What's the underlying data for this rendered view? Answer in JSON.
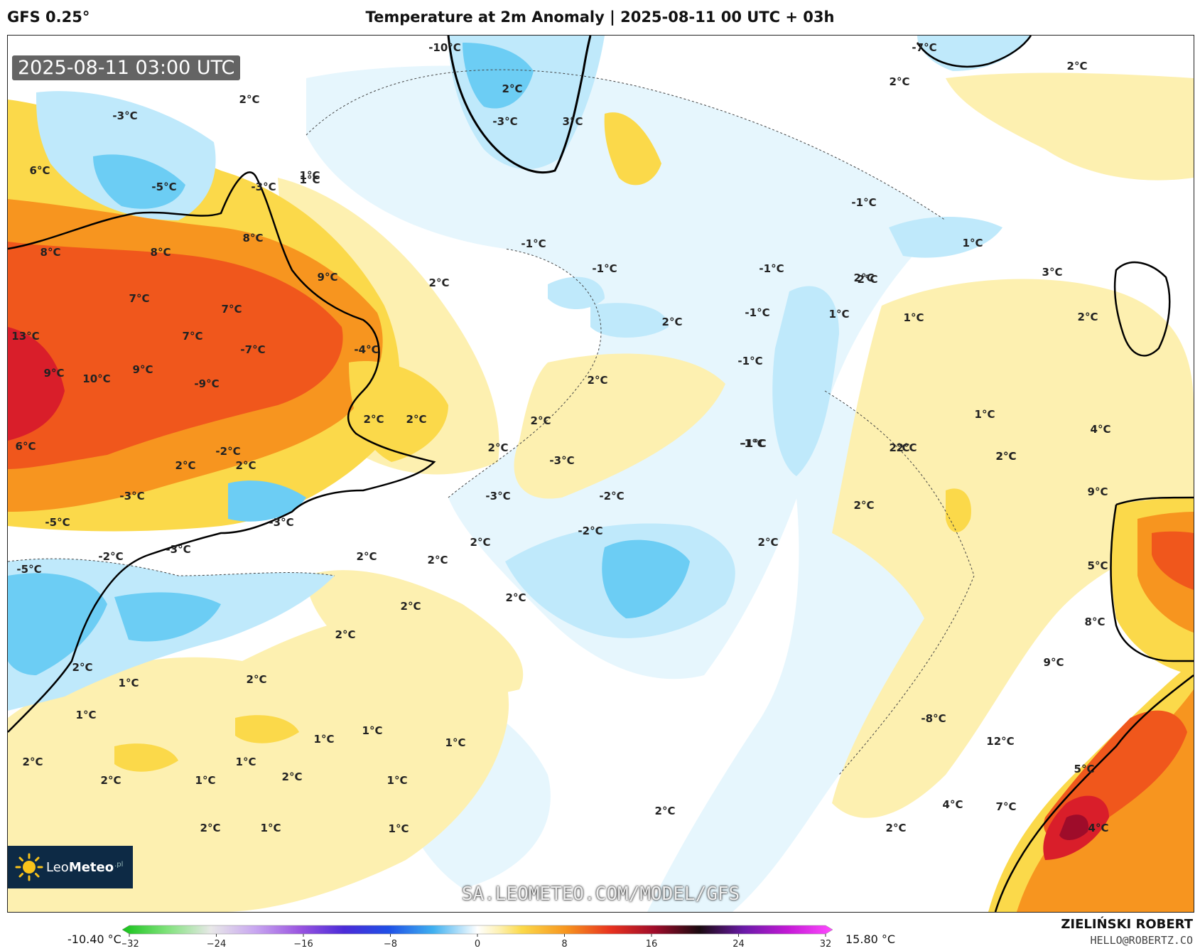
{
  "header": {
    "model": "GFS 0.25°",
    "title": "Temperature at 2m Anomaly | 2025-08-11 00 UTC + 03h"
  },
  "map": {
    "timestamp": "2025-08-11 03:00 UTC",
    "watermark": "SA.LEOMETEO.COM/MODEL/GFS",
    "labels": [
      "2°C",
      "-3°C",
      "-5°C",
      "-3°C",
      "6°C",
      "8°C",
      "8°C",
      "8°C",
      "7°C",
      "7°C",
      "9°C",
      "13°C",
      "7°C",
      "9°C",
      "10°C",
      "9°C",
      "-9°C",
      "-7°C",
      "-4°C",
      "6°C",
      "-2°C",
      "2°C",
      "2°C",
      "2°C",
      "2°C",
      "1°C",
      "-10°C",
      "2°C",
      "-3°C",
      "3°C",
      "-7°C",
      "2°C",
      "2°C",
      "-1°C",
      "-1°C",
      "-1°C",
      "-1°C",
      "2°C",
      "-1°C",
      "2°C",
      "2°C",
      "2°C",
      "2°C",
      "-1°C",
      "-3°C",
      "-3°C",
      "-2°C",
      "-2°C",
      "-1°C",
      "1°C",
      "2°C",
      "1°C",
      "1°C",
      "2°C",
      "1°C",
      "2°C",
      "2°C",
      "2°C",
      "2°C",
      "2°C",
      "2°C",
      "2°C",
      "1°C",
      "2°C",
      "1°C",
      "1°C",
      "1°C",
      "1°C",
      "1°C",
      "1°C",
      "2°C",
      "2°C",
      "2°C",
      "1°C",
      "2°C",
      "1°C",
      "-1°C",
      "3°C",
      "2°C",
      "2°C",
      "2°C",
      "2°C",
      "1°C",
      "2°C",
      "4°C",
      "2°C",
      "2°C",
      "2°C",
      "9°C",
      "5°C",
      "8°C",
      "9°C",
      "12°C",
      "-8°C",
      "5°C",
      "7°C",
      "4°C",
      "4°C",
      "-5°C",
      "-2°C",
      "-3°C",
      "-5°C",
      "-3°C",
      "-3°C",
      "2°C",
      "1°C"
    ],
    "colors": {
      "deep_blue": "#2ea8e8",
      "blue": "#6ccdf4",
      "light_blue": "#bfe9fb",
      "pale_blue": "#e6f6fd",
      "pale_yellow": "#fdf0b0",
      "yellow": "#fbd94a",
      "orange": "#f7951f",
      "red_orange": "#f0571c",
      "red": "#d91e2a",
      "dark_red": "#9e0c2a",
      "land_line": "#000000"
    }
  },
  "logo": {
    "name_light": "Leo",
    "name_bold": "Meteo",
    "suffix": ".pl"
  },
  "legend": {
    "min_label": "-10.40 °C",
    "max_label": "15.80 °C",
    "ticks": [
      "−32",
      "−24",
      "−16",
      "−8",
      "0",
      "8",
      "16",
      "24",
      "32"
    ],
    "stops": [
      {
        "v": -32,
        "c": "#16c21a"
      },
      {
        "v": -28,
        "c": "#7fe27a"
      },
      {
        "v": -24,
        "c": "#e8e8e8"
      },
      {
        "v": -20,
        "c": "#c8a6f0"
      },
      {
        "v": -16,
        "c": "#9a55e0"
      },
      {
        "v": -12,
        "c": "#4b2bd8"
      },
      {
        "v": -8,
        "c": "#1f4fe6"
      },
      {
        "v": -4,
        "c": "#3fb0f0"
      },
      {
        "v": 0,
        "c": "#ffffff"
      },
      {
        "v": 2,
        "c": "#fdf0b0"
      },
      {
        "v": 4,
        "c": "#fbd94a"
      },
      {
        "v": 8,
        "c": "#f7951f"
      },
      {
        "v": 12,
        "c": "#e8321f"
      },
      {
        "v": 16,
        "c": "#9e0c2a"
      },
      {
        "v": 20,
        "c": "#1a0a10"
      },
      {
        "v": 24,
        "c": "#6a1aa8"
      },
      {
        "v": 28,
        "c": "#c419d6"
      },
      {
        "v": 32,
        "c": "#ff4bff"
      }
    ]
  },
  "credit": {
    "name": "ZIELIŃSKI ROBERT",
    "email": "HELLO@ROBERTZ.CO"
  }
}
